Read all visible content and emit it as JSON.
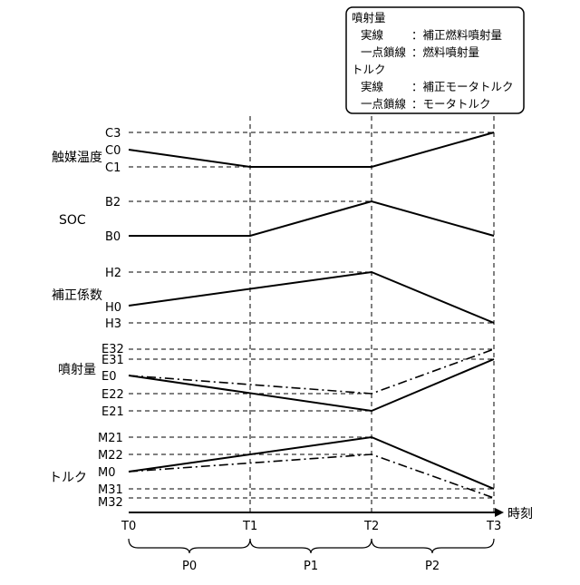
{
  "legend": {
    "line1": "噴射量",
    "line2a": "実線",
    "line2b": "：補正燃料噴射量",
    "line3a": "一点鎖線",
    "line3b": "：燃料噴射量",
    "line4": "トルク",
    "line5a": "実線",
    "line5b": "：補正モータトルク",
    "line6a": "一点鎖線",
    "line6b": "：モータトルク"
  },
  "rows": {
    "catalyst": {
      "label": "触媒温度",
      "levels": [
        "C3",
        "C0",
        "C1"
      ]
    },
    "soc": {
      "label": "SOC",
      "levels": [
        "B2",
        "B0"
      ]
    },
    "coef": {
      "label": "補正係数",
      "levels": [
        "H2",
        "H0",
        "H3"
      ]
    },
    "injection": {
      "label": "噴射量",
      "levels": [
        "E32",
        "E31",
        "E0",
        "E22",
        "E21"
      ]
    },
    "torque": {
      "label": "トルク",
      "levels": [
        "M21",
        "M22",
        "M0",
        "M31",
        "M32"
      ]
    }
  },
  "time_axis": {
    "label": "時刻",
    "ticks": [
      "T0",
      "T1",
      "T2",
      "T3"
    ],
    "periods": [
      "P0",
      "P1",
      "P2"
    ]
  }
}
